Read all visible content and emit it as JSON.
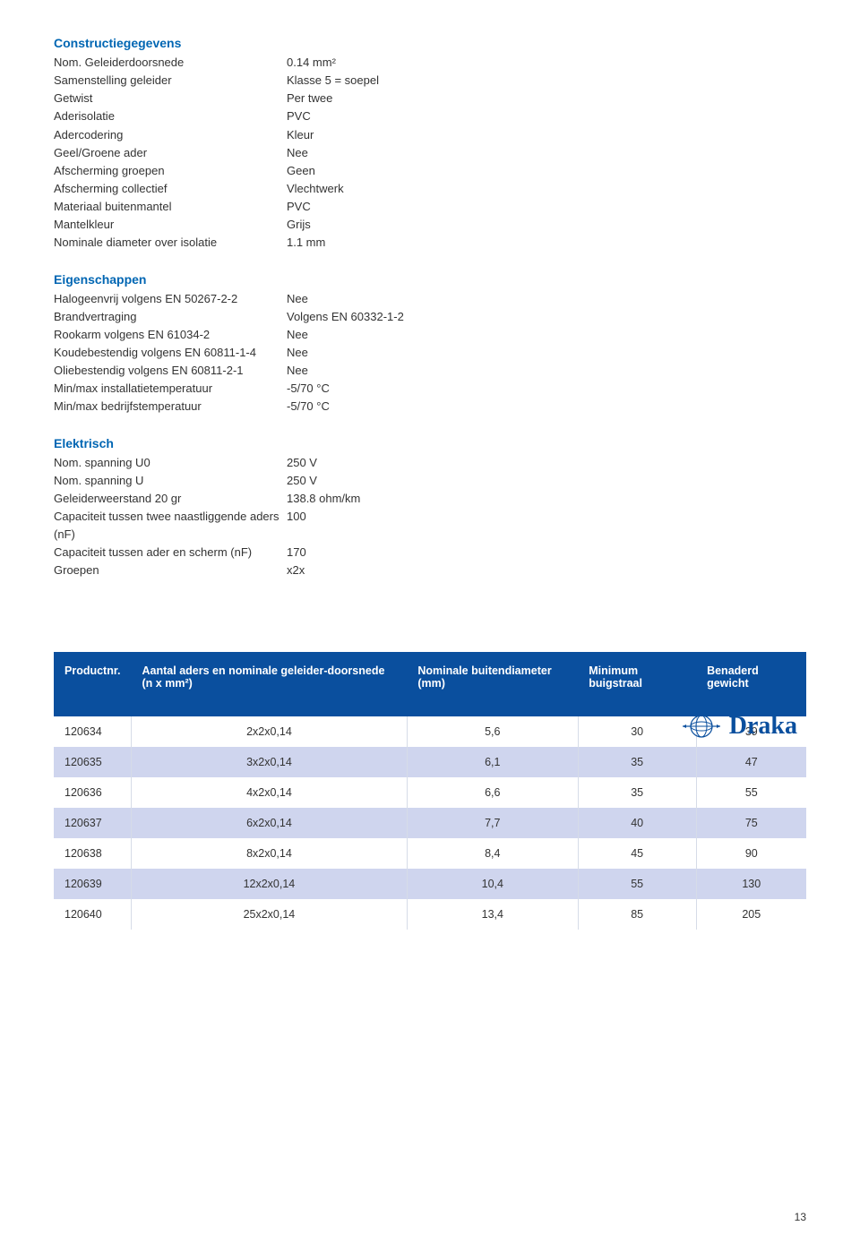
{
  "sections": {
    "constructie": {
      "title": "Constructiegegevens",
      "rows": [
        {
          "label": "Nom. Geleiderdoorsnede",
          "value": "0.14 mm²"
        },
        {
          "label": "Samenstelling geleider",
          "value": "Klasse 5 = soepel"
        },
        {
          "label": "Getwist",
          "value": "Per twee"
        },
        {
          "label": "Aderisolatie",
          "value": "PVC"
        },
        {
          "label": "Adercodering",
          "value": "Kleur"
        },
        {
          "label": "Geel/Groene ader",
          "value": "Nee"
        },
        {
          "label": "Afscherming groepen",
          "value": "Geen"
        },
        {
          "label": "Afscherming collectief",
          "value": "Vlechtwerk"
        },
        {
          "label": "Materiaal buitenmantel",
          "value": "PVC"
        },
        {
          "label": "Mantelkleur",
          "value": "Grijs"
        },
        {
          "label": "Nominale diameter over isolatie",
          "value": "1.1 mm"
        }
      ]
    },
    "eigenschappen": {
      "title": "Eigenschappen",
      "rows": [
        {
          "label": "Halogeenvrij volgens EN 50267-2-2",
          "value": "Nee"
        },
        {
          "label": "Brandvertraging",
          "value": "Volgens EN 60332-1-2"
        },
        {
          "label": "Rookarm volgens EN 61034-2",
          "value": "Nee"
        },
        {
          "label": "Koudebestendig volgens EN 60811-1-4",
          "value": "Nee"
        },
        {
          "label": "Oliebestendig volgens EN 60811-2-1",
          "value": "Nee"
        },
        {
          "label": "Min/max installatietemperatuur",
          "value": "-5/70 °C"
        },
        {
          "label": "Min/max bedrijfstemperatuur",
          "value": "-5/70 °C"
        }
      ]
    },
    "elektrisch": {
      "title": "Elektrisch",
      "rows": [
        {
          "label": "Nom. spanning U0",
          "value": "250 V"
        },
        {
          "label": "Nom. spanning U",
          "value": "250 V"
        },
        {
          "label": "Geleiderweerstand 20 gr",
          "value": "138.8 ohm/km"
        },
        {
          "label": "Capaciteit tussen twee naastliggende aders (nF)",
          "value": "100"
        },
        {
          "label": "Capaciteit tussen ader en scherm (nF)",
          "value": "170"
        },
        {
          "label": "Groepen",
          "value": "x2x"
        }
      ]
    }
  },
  "logo": {
    "text": "Draka",
    "color": "#0a4f9e"
  },
  "table": {
    "header_bg": "#0a4f9e",
    "header_color": "#ffffff",
    "row_odd_bg": "#ffffff",
    "row_even_bg": "#cfd5ee",
    "border_color": "#d6dce8",
    "columns": [
      "Productnr.",
      "Aantal aders en nominale geleider-doorsnede (n x mm²)",
      "Nominale buitendiameter (mm)",
      "Minimum buigstraal",
      "Benaderd gewicht"
    ],
    "rows": [
      {
        "cells": [
          "120634",
          "2x2x0,14",
          "5,6",
          "30",
          "39"
        ]
      },
      {
        "cells": [
          "120635",
          "3x2x0,14",
          "6,1",
          "35",
          "47"
        ]
      },
      {
        "cells": [
          "120636",
          "4x2x0,14",
          "6,6",
          "35",
          "55"
        ]
      },
      {
        "cells": [
          "120637",
          "6x2x0,14",
          "7,7",
          "40",
          "75"
        ]
      },
      {
        "cells": [
          "120638",
          "8x2x0,14",
          "8,4",
          "45",
          "90"
        ]
      },
      {
        "cells": [
          "120639",
          "12x2x0,14",
          "10,4",
          "55",
          "130"
        ]
      },
      {
        "cells": [
          "120640",
          "25x2x0,14",
          "13,4",
          "85",
          "205"
        ]
      }
    ]
  },
  "page_number": "13",
  "colors": {
    "section_title": "#0066b3",
    "body_text": "#333333",
    "brand_blue": "#0a4f9e"
  }
}
